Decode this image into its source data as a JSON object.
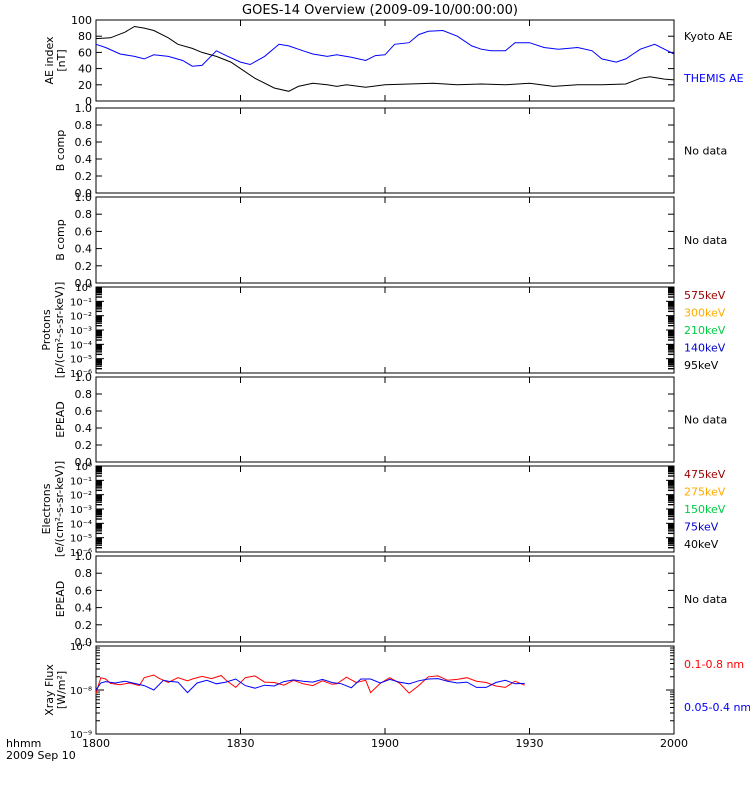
{
  "title": "GOES-14 Overview (2009-09-10/00:00:00)",
  "time_axis": {
    "unit_label": "hhmm",
    "date_label": "2009 Sep 10",
    "tick_labels": [
      "1800",
      "1830",
      "1900",
      "1930",
      "2000"
    ],
    "range_hhmm": [
      "1800",
      "2000"
    ]
  },
  "colors": {
    "kyoto": "#000000",
    "themis": "#0000ff",
    "xray_long": "#ff0000",
    "xray_short": "#0000ff",
    "e575": "#990000",
    "e300": "#ffaa00",
    "e210": "#00cc44",
    "e140": "#0000cc",
    "e95": "#000000"
  },
  "chart_data": [
    {
      "id": "ae",
      "type": "line",
      "ylabel": "AE index [nT]",
      "ylim": [
        0,
        100
      ],
      "y_ticks": [
        "0",
        "20",
        "40",
        "60",
        "80",
        "100"
      ],
      "series": [
        {
          "name": "Kyoto AE",
          "color": "#000000",
          "x": [
            1800,
            1803,
            1806,
            1808,
            1810,
            1812,
            1815,
            1817,
            1820,
            1822,
            1825,
            1828,
            1830,
            1833,
            1837,
            1840,
            1842,
            1845,
            1848,
            1850,
            1852,
            1856,
            1900,
            1905,
            1910,
            1915,
            1920,
            1925,
            1930,
            1935,
            1940,
            1945,
            1950,
            1953,
            1955,
            1958,
            2000
          ],
          "y": [
            77,
            78,
            85,
            92,
            90,
            87,
            78,
            70,
            65,
            60,
            55,
            48,
            40,
            28,
            16,
            12,
            18,
            22,
            20,
            18,
            20,
            17,
            20,
            21,
            22,
            20,
            21,
            20,
            22,
            18,
            20,
            20,
            21,
            28,
            30,
            27,
            26
          ]
        },
        {
          "name": "THEMIS AE",
          "color": "#0000ff",
          "x": [
            1800,
            1802,
            1805,
            1808,
            1810,
            1812,
            1815,
            1818,
            1820,
            1822,
            1825,
            1827,
            1830,
            1832,
            1835,
            1838,
            1840,
            1843,
            1845,
            1848,
            1850,
            1853,
            1856,
            1858,
            1900,
            1902,
            1905,
            1907,
            1909,
            1912,
            1915,
            1918,
            1920,
            1922,
            1925,
            1927,
            1930,
            1933,
            1936,
            1940,
            1943,
            1945,
            1948,
            1950,
            1953,
            1956,
            1958,
            2000
          ],
          "y": [
            70,
            66,
            58,
            55,
            52,
            57,
            55,
            50,
            43,
            44,
            62,
            56,
            48,
            45,
            55,
            70,
            68,
            62,
            58,
            55,
            57,
            54,
            50,
            56,
            57,
            70,
            72,
            82,
            86,
            87,
            80,
            68,
            64,
            62,
            62,
            72,
            72,
            66,
            64,
            66,
            62,
            52,
            48,
            52,
            64,
            70,
            64,
            58
          ]
        }
      ]
    },
    {
      "id": "b1",
      "type": "line",
      "ylabel": "B comp",
      "ylim": [
        0,
        1
      ],
      "y_ticks": [
        "0.0",
        "0.2",
        "0.4",
        "0.6",
        "0.8",
        "1.0"
      ],
      "legend": [
        "No data"
      ],
      "series": []
    },
    {
      "id": "b2",
      "type": "line",
      "ylabel": "B comp",
      "ylim": [
        0,
        1
      ],
      "y_ticks": [
        "0.0",
        "0.2",
        "0.4",
        "0.6",
        "0.8",
        "1.0"
      ],
      "legend": [
        "No data"
      ],
      "series": []
    },
    {
      "id": "protons",
      "type": "line",
      "ylabel": "Protons [p/(cm²-s-sr-keV)]",
      "log": true,
      "ylim_exp": [
        -6,
        0
      ],
      "y_ticks": [
        "10⁰",
        "10⁻¹",
        "10⁻²",
        "10⁻³",
        "10⁻⁴",
        "10⁻⁵",
        "10⁻⁶"
      ],
      "legend": [
        "575keV",
        "300keV",
        "210keV",
        "140keV",
        "95keV"
      ],
      "series": []
    },
    {
      "id": "epead1",
      "type": "line",
      "ylabel": "EPEAD",
      "ylim": [
        0,
        1
      ],
      "y_ticks": [
        "0.0",
        "0.2",
        "0.4",
        "0.6",
        "0.8",
        "1.0"
      ],
      "legend": [
        "No data"
      ],
      "series": []
    },
    {
      "id": "electrons",
      "type": "line",
      "ylabel": "Electrons [e/(cm²-s-sr-keV)]",
      "log": true,
      "ylim_exp": [
        -6,
        0
      ],
      "y_ticks": [
        "10⁰",
        "10⁻¹",
        "10⁻²",
        "10⁻³",
        "10⁻⁴",
        "10⁻⁵",
        "10⁻⁶"
      ],
      "legend": [
        "475keV",
        "275keV",
        "150keV",
        "75keV",
        "40keV"
      ],
      "series": []
    },
    {
      "id": "epead2",
      "type": "line",
      "ylabel": "EPEAD",
      "ylim": [
        0,
        1
      ],
      "y_ticks": [
        "0.0",
        "0.2",
        "0.4",
        "0.6",
        "0.8",
        "1.0"
      ],
      "legend": [
        "No data"
      ],
      "series": []
    },
    {
      "id": "xray",
      "type": "line",
      "ylabel": "Xray Flux [W/m²]",
      "log": true,
      "ylim_exp": [
        -9,
        -7
      ],
      "y_ticks": [
        "10⁻⁷",
        "10⁻⁸",
        "10⁻⁹"
      ],
      "series": [
        {
          "name": "0.1-0.8 nm",
          "color": "#ff0000",
          "x": [
            1800,
            1801,
            1802,
            1803,
            1805,
            1807,
            1809,
            1810,
            1812,
            1813,
            1815,
            1817,
            1819,
            1820,
            1822,
            1824,
            1826,
            1827,
            1829,
            1831,
            1833,
            1835,
            1837,
            1839,
            1841,
            1843,
            1845,
            1847,
            1849,
            1850,
            1852,
            1854,
            1856,
            1857,
            1859,
            1861,
            1863,
            1865,
            1867,
            1869,
            1871,
            1873,
            1875,
            1877,
            1879,
            1881,
            1883,
            1885,
            1887,
            1889
          ],
          "y": [
            -8.07,
            -7.72,
            -7.75,
            -7.85,
            -7.88,
            -7.84,
            -7.9,
            -7.72,
            -7.66,
            -7.73,
            -7.83,
            -7.72,
            -7.79,
            -7.75,
            -7.69,
            -7.74,
            -7.67,
            -7.78,
            -7.94,
            -7.72,
            -7.68,
            -7.82,
            -7.83,
            -7.89,
            -7.78,
            -7.86,
            -7.9,
            -7.79,
            -7.87,
            -7.86,
            -7.71,
            -7.83,
            -7.78,
            -8.06,
            -7.85,
            -7.72,
            -7.84,
            -8.07,
            -7.9,
            -7.7,
            -7.68,
            -7.78,
            -7.76,
            -7.72,
            -7.8,
            -7.83,
            -7.91,
            -7.94,
            -7.8,
            -7.89
          ]
        },
        {
          "name": "0.05-0.4 nm",
          "color": "#0000ff",
          "x": [
            1800,
            1801,
            1802,
            1804,
            1806,
            1808,
            1810,
            1812,
            1814,
            1815,
            1817,
            1819,
            1821,
            1823,
            1825,
            1827,
            1829,
            1831,
            1833,
            1835,
            1837,
            1839,
            1841,
            1843,
            1845,
            1847,
            1849,
            1851,
            1853,
            1855,
            1857,
            1859,
            1861,
            1863,
            1865,
            1867,
            1869,
            1871,
            1873,
            1875,
            1877,
            1879,
            1881,
            1883,
            1885,
            1887,
            1889
          ],
          "y": [
            -8.0,
            -7.84,
            -7.81,
            -7.84,
            -7.8,
            -7.85,
            -7.9,
            -8.0,
            -7.78,
            -7.8,
            -7.82,
            -8.06,
            -7.84,
            -7.78,
            -7.86,
            -7.82,
            -7.75,
            -7.9,
            -7.96,
            -7.89,
            -7.91,
            -7.81,
            -7.77,
            -7.8,
            -7.82,
            -7.76,
            -7.83,
            -7.86,
            -7.95,
            -7.75,
            -7.75,
            -7.84,
            -7.76,
            -7.82,
            -7.86,
            -7.79,
            -7.75,
            -7.74,
            -7.8,
            -7.84,
            -7.82,
            -7.94,
            -7.94,
            -7.83,
            -7.78,
            -7.86,
            -7.85
          ]
        }
      ]
    }
  ]
}
